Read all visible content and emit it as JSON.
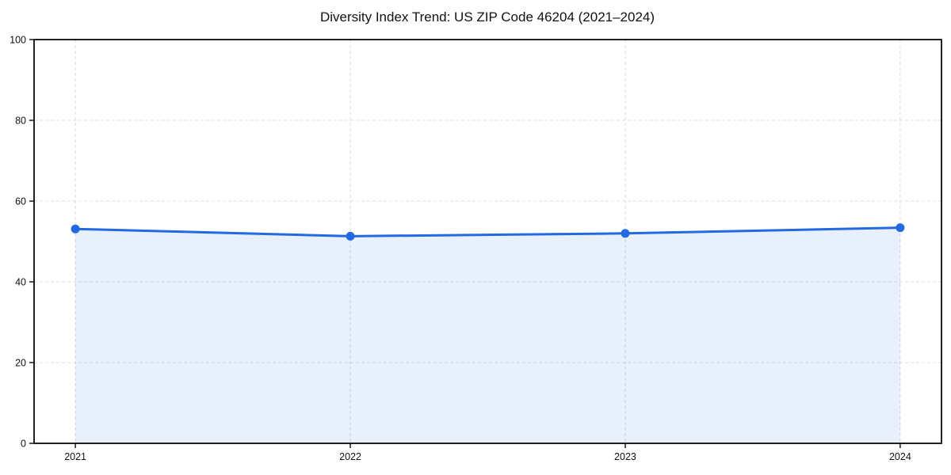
{
  "chart": {
    "title": "Diversity Index Trend: US ZIP Code 46204 (2021–2024)"
  },
  "chart_data": {
    "type": "area",
    "title": "Diversity Index Trend: US ZIP Code 46204 (2021–2024)",
    "x": [
      2021,
      2022,
      2023,
      2024
    ],
    "xtick_labels": [
      "2021",
      "2022",
      "2023",
      "2024"
    ],
    "series": [
      {
        "name": "Diversity Index",
        "values": [
          53.1,
          51.3,
          52.0,
          53.4
        ]
      }
    ],
    "xlabel": "",
    "ylabel": "",
    "ylim": [
      0,
      100
    ],
    "yticks": [
      0,
      20,
      40,
      60,
      80,
      100
    ],
    "ytick_labels": [
      "0",
      "20",
      "40",
      "60",
      "80",
      "100"
    ],
    "grid": true,
    "grid_style": "dashed",
    "legend": "none",
    "marker": "circle",
    "colors": {
      "line": "#2269e2",
      "marker": "#2269e2",
      "area_fill": "rgba(34, 105, 226, 0.10)",
      "grid": "#dedede",
      "spine": "#0a0a0a",
      "tick": "#0a0a0a",
      "tick_label": "#111111",
      "title": "#111111",
      "background": "#ffffff"
    }
  }
}
